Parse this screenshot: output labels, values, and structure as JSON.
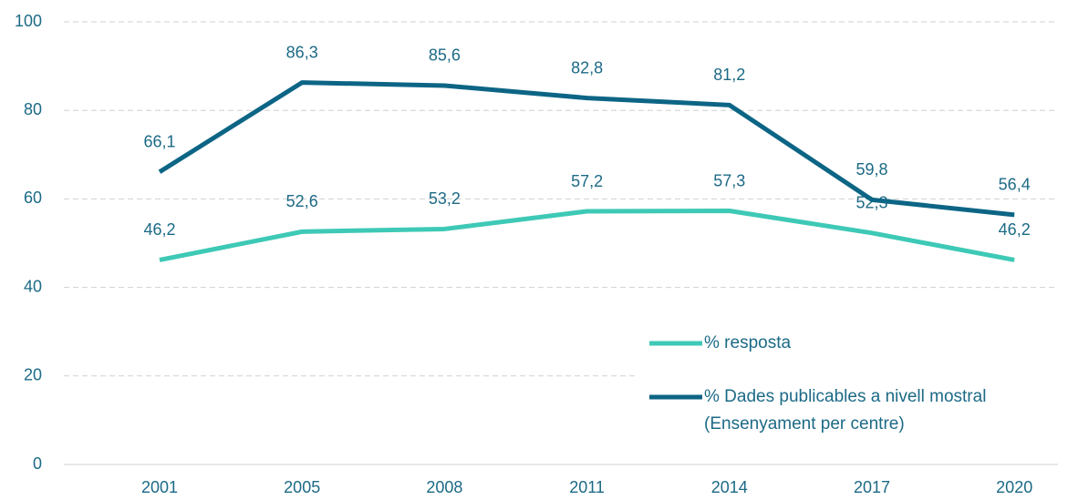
{
  "chart_data": {
    "type": "line",
    "categories": [
      "2001",
      "2005",
      "2008",
      "2011",
      "2014",
      "2017",
      "2020"
    ],
    "series": [
      {
        "name": "% resposta",
        "color": "#3ec9b6",
        "values": [
          46.2,
          52.6,
          53.2,
          57.2,
          57.3,
          52.3,
          46.2
        ],
        "value_labels": [
          "46,2",
          "52,6",
          "53,2",
          "57,2",
          "57,3",
          "52,3",
          "46,2"
        ]
      },
      {
        "name": "% Dades publicables a nivell mostral\n(Ensenyament per centre)",
        "color": "#0d6585",
        "values": [
          66.1,
          86.3,
          85.6,
          82.8,
          81.2,
          59.8,
          56.4
        ],
        "value_labels": [
          "66,1",
          "86,3",
          "85,6",
          "82,8",
          "81,2",
          "59,8",
          "56,4"
        ]
      }
    ],
    "ylim": [
      0,
      100
    ],
    "yticks": [
      0,
      20,
      40,
      60,
      80,
      100
    ],
    "grid": true,
    "legend": "lower right"
  }
}
